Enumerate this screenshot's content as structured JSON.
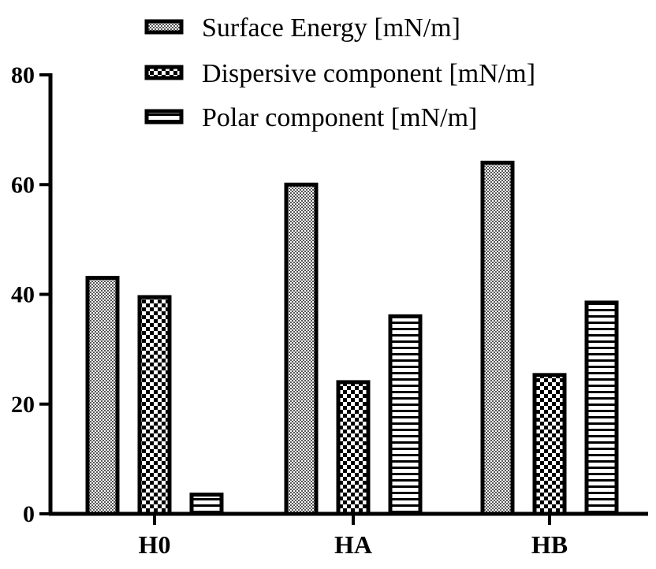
{
  "chart_data": {
    "type": "bar",
    "title": "",
    "xlabel": "",
    "ylabel": "",
    "ylim": [
      0,
      80
    ],
    "yticks": [
      0,
      20,
      40,
      60,
      80
    ],
    "grid": false,
    "legend_position": "top",
    "categories": [
      "H0",
      "HA",
      "HB"
    ],
    "series": [
      {
        "name": "Surface Energy [mN/m]",
        "pattern": "dots",
        "values": [
          43,
          60,
          64
        ]
      },
      {
        "name": "Dispersive component [mN/m]",
        "pattern": "checker",
        "values": [
          39.5,
          24,
          25.3
        ]
      },
      {
        "name": "Polar component [mN/m]",
        "pattern": "horizontal-lines",
        "values": [
          3.5,
          36,
          38.5
        ]
      }
    ]
  },
  "colors": {
    "axis": "#000000",
    "bar_outline": "#000000",
    "background": "#ffffff"
  }
}
